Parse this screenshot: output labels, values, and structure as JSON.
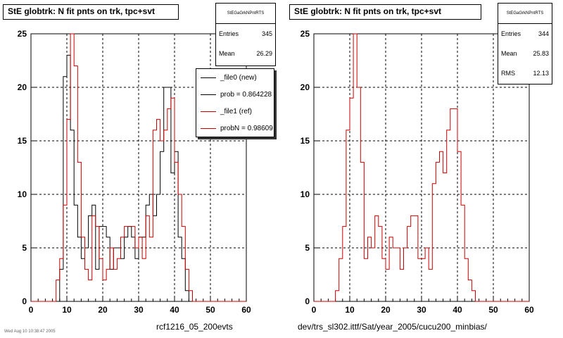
{
  "colors": {
    "new": "#000000",
    "ref": "#cc0000",
    "grid": "#000000"
  },
  "footer": {
    "tiny_text": "Wed Aug 10 10:38:47 2005"
  },
  "chart_data": [
    {
      "type": "histogram",
      "title": "StE globtrk: N fit pnts on trk, tpc+svt",
      "stats_title": "StEGaGrkNPntRTS",
      "stats": [
        {
          "label": "Entries",
          "value": "345"
        },
        {
          "label": "Mean",
          "value": "26.29"
        }
      ],
      "xlim": [
        0,
        60
      ],
      "ylim": [
        0,
        25
      ],
      "xticks": [
        0,
        10,
        20,
        30,
        40,
        50,
        60
      ],
      "yticks": [
        0,
        5,
        10,
        15,
        20,
        25
      ],
      "grid": true,
      "xfile_label": "rcf1216_05_200evts",
      "legend": {
        "position": "top-right",
        "entries": [
          {
            "label": "_file0 (new)",
            "color": "#000000"
          },
          {
            "label": "prob = 0.864228",
            "color": "#000000"
          },
          {
            "label": "_file1 (ref)",
            "color": "#cc0000"
          },
          {
            "label": "probN = 0.98609",
            "color": "#cc0000"
          }
        ]
      },
      "bin_width": 1,
      "series": [
        {
          "name": "_file0 (new)",
          "color": "#000000",
          "x_start": 0,
          "values": [
            0,
            0,
            0,
            0,
            0,
            0,
            0,
            0,
            3,
            21,
            23,
            16,
            9,
            6,
            4,
            5,
            8,
            9,
            3,
            7,
            7,
            6,
            3,
            5,
            5,
            4,
            6,
            7,
            6,
            4,
            6,
            6,
            9,
            10,
            8,
            10,
            14,
            20,
            20,
            12,
            14,
            6,
            4,
            1,
            0,
            0,
            0,
            0,
            0,
            0,
            0,
            0,
            0,
            0,
            0,
            0,
            0,
            0,
            0,
            0
          ]
        },
        {
          "name": "_file1 (ref)",
          "color": "#cc0000",
          "x_start": 0,
          "values": [
            0,
            0,
            0,
            0,
            0,
            0,
            0,
            2,
            4,
            9,
            17,
            25,
            22,
            13,
            6,
            3,
            2,
            8,
            7,
            4,
            2,
            3,
            5,
            3,
            4,
            6,
            7,
            7,
            7,
            5,
            6,
            4,
            8,
            6,
            16,
            17,
            15,
            16,
            18,
            19,
            13,
            10,
            7,
            3,
            1,
            0,
            0,
            0,
            0,
            0,
            0,
            0,
            0,
            0,
            0,
            0,
            0,
            0,
            0,
            0
          ]
        }
      ]
    },
    {
      "type": "histogram",
      "title": "StE globtrk: N fit pnts on trk, tpc+svt",
      "stats_title": "StEGaGrkNPntRTS",
      "stats": [
        {
          "label": "Entries",
          "value": "344"
        },
        {
          "label": "Mean",
          "value": "25.83"
        },
        {
          "label": "RMS",
          "value": "12.13"
        }
      ],
      "xlim": [
        0,
        60
      ],
      "ylim": [
        0,
        25
      ],
      "xticks": [
        0,
        10,
        20,
        30,
        40,
        50,
        60
      ],
      "yticks": [
        0,
        5,
        10,
        15,
        20,
        25
      ],
      "grid": true,
      "xfile_label": "dev/trs_sl302.ittf/Sat/year_2005/cucu200_minbias/",
      "bin_width": 1,
      "series": [
        {
          "color": "#cc0000",
          "x_start": 0,
          "values": [
            0,
            0,
            0,
            0,
            0,
            0,
            1,
            4,
            7,
            16,
            19,
            25,
            20,
            13,
            4,
            6,
            5,
            8,
            7,
            4,
            3,
            6,
            5,
            5,
            3,
            5,
            7,
            8,
            8,
            4,
            4,
            5,
            3,
            11,
            13,
            14,
            12,
            16,
            18,
            18,
            14,
            9,
            4,
            2,
            1,
            0,
            0,
            0,
            0,
            0,
            0,
            0,
            0,
            0,
            0,
            0,
            0,
            0,
            0,
            0
          ]
        }
      ]
    }
  ]
}
